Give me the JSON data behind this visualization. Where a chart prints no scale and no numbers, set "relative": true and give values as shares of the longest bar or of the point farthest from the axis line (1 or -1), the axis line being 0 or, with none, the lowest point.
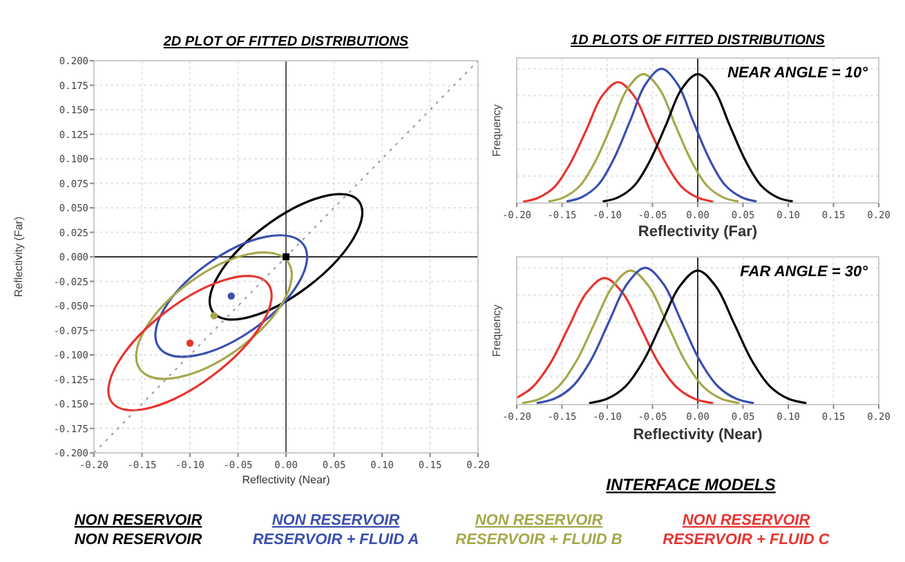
{
  "chart_data": [
    {
      "type": "line",
      "title": "2D PLOT OF FITTED DISTRIBUTIONS",
      "xlabel": "Reflectivity (Near)",
      "ylabel": "Reflectivity (Far)",
      "legend_title": "INTERFACE MODELS",
      "grid": true,
      "xlim": [
        -0.2,
        0.2
      ],
      "ylim": [
        -0.2,
        0.2
      ],
      "xticks": [
        {
          "value": -0.2,
          "label": "-0.20"
        },
        {
          "value": -0.15,
          "label": "-0.15"
        },
        {
          "value": -0.1,
          "label": "-0.10"
        },
        {
          "value": -0.05,
          "label": "-0.05"
        },
        {
          "value": 0,
          "label": "0.00"
        },
        {
          "value": 0.05,
          "label": "0.05"
        },
        {
          "value": 0.1,
          "label": "0.10"
        },
        {
          "value": 0.15,
          "label": "0.15"
        },
        {
          "value": 0.2,
          "label": "0.20"
        }
      ],
      "yticks": [
        {
          "value": -0.2,
          "label": "-0.200"
        },
        {
          "value": -0.175,
          "label": "-0.175"
        },
        {
          "value": -0.15,
          "label": "-0.150"
        },
        {
          "value": -0.125,
          "label": "-0.125"
        },
        {
          "value": -0.1,
          "label": "-0.100"
        },
        {
          "value": -0.075,
          "label": "-0.075"
        },
        {
          "value": -0.05,
          "label": "-0.050"
        },
        {
          "value": -0.025,
          "label": "-0.025"
        },
        {
          "value": 0,
          "label": "0.000"
        },
        {
          "value": 0.025,
          "label": "0.025"
        },
        {
          "value": 0.05,
          "label": "0.050"
        },
        {
          "value": 0.075,
          "label": "0.075"
        },
        {
          "value": 0.1,
          "label": "0.100"
        },
        {
          "value": 0.125,
          "label": "0.125"
        },
        {
          "value": 0.15,
          "label": "0.150"
        },
        {
          "value": 0.175,
          "label": "0.175"
        },
        {
          "value": 0.2,
          "label": "0.200"
        }
      ],
      "ref_lines": [
        {
          "axis": "x",
          "value": 0,
          "color": "#555555"
        },
        {
          "axis": "y",
          "value": 0,
          "color": "#333333"
        }
      ],
      "series": [
        {
          "color": "#999999",
          "line_style": "dotted",
          "x": [
            -0.2,
            0.2
          ],
          "values": [
            -0.2,
            0.2
          ]
        },
        {
          "type": "scatter",
          "name": "NON RESERVOIR\nNON RESERVOIR",
          "marker": "square",
          "color": "#000000",
          "x": [
            0
          ],
          "values": [
            0
          ]
        },
        {
          "type": "scatter",
          "name": "NON RESERVOIR\nRESERVOIR + FLUID A",
          "marker": "circle",
          "color": "#3a4fb0",
          "x": [
            -0.057
          ],
          "values": [
            -0.04
          ]
        },
        {
          "type": "scatter",
          "name": "NON RESERVOIR\nRESERVOIR + FLUID B",
          "marker": "circle",
          "color": "#a5a84a",
          "x": [
            -0.075
          ],
          "values": [
            -0.06
          ]
        },
        {
          "type": "scatter",
          "name": "NON RESERVOIR\nRESERVOIR + FLUID C",
          "marker": "circle",
          "color": "#e8332f",
          "x": [
            -0.1
          ],
          "values": [
            -0.088
          ]
        }
      ]
    },
    {
      "type": "line",
      "title": "1D PLOTS OF FITTED DISTRIBUTIONS",
      "xlabel": "Reflectivity (Far)",
      "ylabel": "Frequency",
      "relative": true,
      "grid": "x",
      "tick_labels": "x",
      "annotations": [
        "NEAR ANGLE = 10°"
      ],
      "xlim": [
        -0.2,
        0.2
      ],
      "xticks": [
        {
          "value": -0.2,
          "label": "-0.20"
        },
        {
          "value": -0.15,
          "label": "-0.15"
        },
        {
          "value": -0.1,
          "label": "-0.10"
        },
        {
          "value": -0.05,
          "label": "-0.05"
        },
        {
          "value": 0,
          "label": "0.00"
        },
        {
          "value": 0.05,
          "label": "0.05"
        },
        {
          "value": 0.1,
          "label": "0.10"
        },
        {
          "value": 0.15,
          "label": "0.15"
        },
        {
          "value": 0.2,
          "label": "0.20"
        }
      ],
      "ref_lines": [
        {
          "axis": "x",
          "value": 0,
          "color": "#333333"
        }
      ],
      "series": [
        {
          "color": "#e8332f",
          "x": [
            -0.193,
            -0.176,
            -0.158,
            -0.141,
            -0.123,
            -0.106,
            -0.088,
            -0.07,
            -0.053,
            -0.035,
            -0.018,
            0,
            0.017
          ],
          "values": [
            0.01,
            0.04,
            0.122,
            0.293,
            0.546,
            0.794,
            0.9,
            0.794,
            0.546,
            0.293,
            0.122,
            0.04,
            0.01
          ]
        },
        {
          "color": "#a5a84a",
          "x": [
            -0.165,
            -0.148,
            -0.13,
            -0.113,
            -0.095,
            -0.078,
            -0.06,
            -0.042,
            -0.025,
            -0.007,
            0.01,
            0.028,
            0.045
          ],
          "values": [
            0.011,
            0.042,
            0.13,
            0.312,
            0.583,
            0.847,
            0.96,
            0.847,
            0.583,
            0.312,
            0.13,
            0.042,
            0.011
          ]
        },
        {
          "color": "#3a4fb0",
          "x": [
            -0.145,
            -0.128,
            -0.11,
            -0.093,
            -0.075,
            -0.058,
            -0.04,
            -0.022,
            -0.005,
            0.013,
            0.03,
            0.048,
            0.065
          ],
          "values": [
            0.011,
            0.044,
            0.135,
            0.325,
            0.607,
            0.882,
            1,
            0.882,
            0.607,
            0.325,
            0.135,
            0.044,
            0.011
          ]
        },
        {
          "color": "#000000",
          "x": [
            -0.105,
            -0.088,
            -0.07,
            -0.053,
            -0.035,
            -0.018,
            0,
            0.018,
            0.035,
            0.053,
            0.07,
            0.088,
            0.105
          ],
          "values": [
            0.011,
            0.042,
            0.13,
            0.312,
            0.583,
            0.847,
            0.96,
            0.847,
            0.583,
            0.312,
            0.13,
            0.042,
            0.011
          ]
        }
      ]
    },
    {
      "type": "line",
      "xlabel": "Reflectivity (Near)",
      "ylabel": "Frequency",
      "relative": true,
      "grid": "x",
      "tick_labels": "x",
      "annotations": [
        "FAR ANGLE = 30°"
      ],
      "xlim": [
        -0.2,
        0.2
      ],
      "xticks": [
        {
          "value": -0.2,
          "label": "-0.20"
        },
        {
          "value": -0.15,
          "label": "-0.15"
        },
        {
          "value": -0.1,
          "label": "-0.10"
        },
        {
          "value": -0.05,
          "label": "-0.05"
        },
        {
          "value": 0,
          "label": "0.00"
        },
        {
          "value": 0.05,
          "label": "0.05"
        },
        {
          "value": 0.1,
          "label": "0.10"
        },
        {
          "value": 0.15,
          "label": "0.15"
        },
        {
          "value": 0.2,
          "label": "0.20"
        }
      ],
      "ref_lines": [
        {
          "axis": "x",
          "value": 0,
          "color": "#333333"
        }
      ],
      "series": [
        {
          "color": "#e8332f",
          "x": [
            -0.2,
            -0.183,
            -0.163,
            -0.143,
            -0.123,
            -0.103,
            -0.083,
            -0.063,
            -0.043,
            -0.023,
            -0.003,
            0.017
          ],
          "values": [
            0.05,
            0.125,
            0.301,
            0.561,
            0.816,
            0.925,
            0.816,
            0.561,
            0.301,
            0.125,
            0.041,
            0.01
          ]
        },
        {
          "color": "#a5a84a",
          "x": [
            -0.194,
            -0.174,
            -0.154,
            -0.134,
            -0.114,
            -0.094,
            -0.074,
            -0.054,
            -0.034,
            -0.014,
            0.006,
            0.026,
            0.046
          ],
          "values": [
            0.011,
            0.043,
            0.132,
            0.319,
            0.595,
            0.864,
            0.98,
            0.864,
            0.595,
            0.319,
            0.132,
            0.043,
            0.011
          ]
        },
        {
          "color": "#3a4fb0",
          "x": [
            -0.178,
            -0.158,
            -0.138,
            -0.118,
            -0.098,
            -0.078,
            -0.058,
            -0.038,
            -0.018,
            0.002,
            0.022,
            0.042,
            0.062
          ],
          "values": [
            0.011,
            0.044,
            0.135,
            0.325,
            0.607,
            0.882,
            1,
            0.882,
            0.607,
            0.325,
            0.135,
            0.044,
            0.011
          ]
        },
        {
          "color": "#000000",
          "x": [
            -0.12,
            -0.1,
            -0.08,
            -0.06,
            -0.04,
            -0.02,
            0,
            0.02,
            0.04,
            0.06,
            0.08,
            0.1,
            0.12
          ],
          "values": [
            0.011,
            0.043,
            0.132,
            0.319,
            0.595,
            0.864,
            0.98,
            0.864,
            0.595,
            0.319,
            0.132,
            0.043,
            0.011
          ]
        }
      ]
    }
  ]
}
